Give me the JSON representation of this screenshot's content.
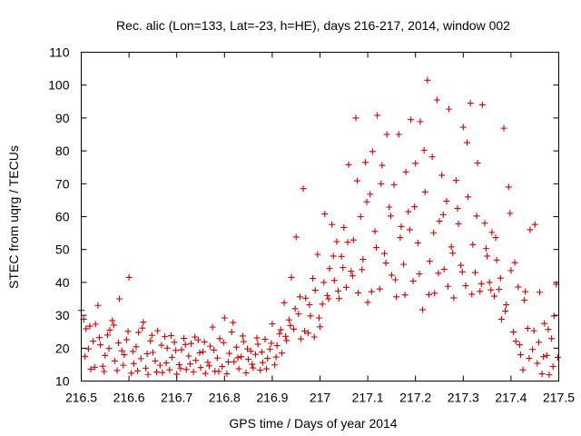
{
  "chart_data": {
    "type": "scatter",
    "title": "Rec. alic (Lon=133, Lat=-23, h=HE), days 216-217, 2014, window 002",
    "xlabel": "GPS time / Days of year 2014",
    "ylabel": "STEC from uqrg / TECUs",
    "xlim": [
      216.5,
      217.5
    ],
    "ylim": [
      10,
      110
    ],
    "x_ticks": [
      216.5,
      216.6,
      216.7,
      216.8,
      216.9,
      217,
      217.1,
      217.2,
      217.3,
      217.4,
      217.5
    ],
    "x_tick_labels": [
      "216.5",
      "216.6",
      "216.7",
      "216.8",
      "216.9",
      "217",
      "217.1",
      "217.2",
      "217.3",
      "217.4",
      "217.5"
    ],
    "y_ticks": [
      10,
      20,
      30,
      40,
      50,
      60,
      70,
      80,
      90,
      100,
      110
    ],
    "y_tick_labels": [
      "10",
      "20",
      "30",
      "40",
      "50",
      "60",
      "70",
      "80",
      "90",
      "100",
      "110"
    ],
    "grid": false,
    "marker": "plus",
    "color": "#cc0000",
    "points": [
      [
        216.5,
        31.5
      ],
      [
        216.505,
        28.8
      ],
      [
        216.51,
        25.9
      ],
      [
        216.515,
        19.8
      ],
      [
        216.52,
        13.6
      ],
      [
        216.525,
        22.1
      ],
      [
        216.53,
        27.3
      ],
      [
        216.535,
        33.0
      ],
      [
        216.54,
        21.0
      ],
      [
        216.545,
        14.5
      ],
      [
        216.55,
        17.8
      ],
      [
        216.555,
        24.0
      ],
      [
        216.56,
        25.5
      ],
      [
        216.565,
        28.4
      ],
      [
        216.57,
        16.1
      ],
      [
        216.575,
        13.2
      ],
      [
        216.58,
        35.0
      ],
      [
        216.585,
        19.2
      ],
      [
        216.59,
        18.0
      ],
      [
        216.595,
        22.6
      ],
      [
        216.6,
        41.5
      ],
      [
        216.605,
        12.4
      ],
      [
        216.61,
        15.3
      ],
      [
        216.615,
        20.4
      ],
      [
        216.62,
        24.8
      ],
      [
        216.625,
        16.8
      ],
      [
        216.63,
        27.9
      ],
      [
        216.635,
        13.9
      ],
      [
        216.64,
        12.0
      ],
      [
        216.645,
        22.2
      ],
      [
        216.65,
        18.7
      ],
      [
        216.655,
        16.1
      ],
      [
        216.66,
        25.3
      ],
      [
        216.665,
        14.8
      ],
      [
        216.67,
        12.6
      ],
      [
        216.675,
        23.5
      ],
      [
        216.68,
        20.0
      ],
      [
        216.685,
        13.4
      ],
      [
        216.69,
        17.2
      ],
      [
        216.695,
        21.8
      ],
      [
        216.7,
        12.1
      ],
      [
        216.705,
        15.0
      ],
      [
        216.71,
        19.5
      ],
      [
        216.715,
        23.0
      ],
      [
        216.72,
        13.5
      ],
      [
        216.725,
        17.6
      ],
      [
        216.73,
        21.4
      ],
      [
        216.735,
        12.8
      ],
      [
        216.74,
        16.3
      ],
      [
        216.745,
        22.5
      ],
      [
        216.75,
        14.1
      ],
      [
        216.755,
        18.9
      ],
      [
        216.76,
        12.3
      ],
      [
        216.765,
        15.7
      ],
      [
        216.77,
        20.6
      ],
      [
        216.775,
        26.4
      ],
      [
        216.78,
        13.0
      ],
      [
        216.785,
        17.0
      ],
      [
        216.79,
        22.9
      ],
      [
        216.795,
        14.4
      ],
      [
        216.8,
        29.2
      ],
      [
        216.805,
        12.2
      ],
      [
        216.81,
        18.4
      ],
      [
        216.815,
        24.9
      ],
      [
        216.82,
        15.9
      ],
      [
        216.825,
        20.3
      ],
      [
        216.83,
        13.7
      ],
      [
        216.835,
        17.4
      ],
      [
        216.84,
        22.0
      ],
      [
        216.845,
        12.5
      ],
      [
        216.85,
        16.6
      ],
      [
        216.855,
        19.1
      ],
      [
        216.86,
        14.0
      ],
      [
        216.865,
        18.1
      ],
      [
        216.87,
        21.2
      ],
      [
        216.875,
        13.3
      ],
      [
        216.88,
        15.6
      ],
      [
        216.885,
        22.7
      ],
      [
        216.89,
        16.9
      ],
      [
        216.895,
        19.7
      ],
      [
        216.9,
        27.4
      ],
      [
        216.905,
        14.9
      ],
      [
        216.91,
        20.8
      ],
      [
        216.915,
        24.4
      ],
      [
        216.92,
        18.5
      ],
      [
        216.925,
        33.8
      ],
      [
        216.93,
        22.3
      ],
      [
        216.935,
        28.6
      ],
      [
        216.94,
        41.5
      ],
      [
        216.945,
        25.8
      ],
      [
        216.95,
        53.8
      ],
      [
        216.955,
        30.4
      ],
      [
        216.96,
        22.8
      ],
      [
        216.965,
        68.5
      ],
      [
        216.97,
        35.2
      ],
      [
        216.975,
        24.6
      ],
      [
        216.98,
        29.8
      ],
      [
        216.985,
        41.2
      ],
      [
        216.99,
        37.6
      ],
      [
        216.995,
        48.5
      ],
      [
        217.0,
        26.5
      ],
      [
        217.005,
        33.4
      ],
      [
        217.01,
        60.8
      ],
      [
        217.015,
        36.0
      ],
      [
        217.02,
        44.2
      ],
      [
        217.025,
        57.6
      ],
      [
        217.03,
        40.6
      ],
      [
        217.035,
        52.4
      ],
      [
        217.04,
        35.1
      ],
      [
        217.045,
        47.9
      ],
      [
        217.05,
        56.7
      ],
      [
        217.055,
        38.5
      ],
      [
        217.06,
        75.8
      ],
      [
        217.065,
        43.4
      ],
      [
        217.07,
        52.9
      ],
      [
        217.075,
        90.0
      ],
      [
        217.08,
        36.8
      ],
      [
        217.085,
        60.0
      ],
      [
        217.09,
        47.0
      ],
      [
        217.095,
        76.5
      ],
      [
        217.1,
        33.9
      ],
      [
        217.105,
        66.8
      ],
      [
        217.11,
        79.8
      ],
      [
        217.115,
        55.5
      ],
      [
        217.12,
        90.8
      ],
      [
        217.125,
        38.0
      ],
      [
        217.13,
        75.6
      ],
      [
        217.135,
        48.8
      ],
      [
        217.14,
        85.0
      ],
      [
        217.145,
        62.9
      ],
      [
        217.15,
        42.2
      ],
      [
        217.155,
        69.7
      ],
      [
        217.16,
        35.6
      ],
      [
        217.165,
        85.0
      ],
      [
        217.17,
        57.0
      ],
      [
        217.175,
        45.5
      ],
      [
        217.18,
        73.6
      ],
      [
        217.185,
        61.5
      ],
      [
        217.19,
        89.5
      ],
      [
        217.195,
        40.4
      ],
      [
        217.2,
        76.2
      ],
      [
        217.205,
        52.0
      ],
      [
        217.21,
        88.9
      ],
      [
        217.215,
        31.7
      ],
      [
        217.22,
        67.5
      ],
      [
        217.225,
        101.5
      ],
      [
        217.23,
        46.4
      ],
      [
        217.235,
        78.2
      ],
      [
        217.24,
        36.7
      ],
      [
        217.245,
        95.5
      ],
      [
        217.25,
        58.6
      ],
      [
        217.255,
        72.6
      ],
      [
        217.26,
        44.0
      ],
      [
        217.265,
        64.7
      ],
      [
        217.27,
        92.7
      ],
      [
        217.275,
        50.8
      ],
      [
        217.28,
        35.3
      ],
      [
        217.285,
        71.0
      ],
      [
        217.29,
        57.8
      ],
      [
        217.295,
        45.2
      ],
      [
        217.3,
        87.2
      ],
      [
        217.305,
        39.0
      ],
      [
        217.31,
        66.0
      ],
      [
        217.315,
        94.5
      ],
      [
        217.32,
        51.5
      ],
      [
        217.325,
        43.0
      ],
      [
        217.33,
        76.3
      ],
      [
        217.335,
        37.3
      ],
      [
        217.34,
        94.0
      ],
      [
        217.345,
        58.0
      ],
      [
        217.35,
        48.0
      ],
      [
        217.355,
        40.0
      ],
      [
        217.36,
        55.2
      ],
      [
        217.365,
        35.8
      ],
      [
        217.37,
        46.8
      ],
      [
        217.375,
        37.9
      ],
      [
        217.38,
        28.8
      ],
      [
        217.385,
        86.9
      ],
      [
        217.39,
        33.2
      ],
      [
        217.395,
        69.0
      ],
      [
        217.4,
        43.6
      ],
      [
        217.405,
        24.9
      ],
      [
        217.41,
        22.1
      ],
      [
        217.415,
        38.6
      ],
      [
        217.42,
        18.0
      ],
      [
        217.425,
        13.4
      ],
      [
        217.43,
        37.2
      ],
      [
        217.435,
        26.0
      ],
      [
        217.44,
        56.0
      ],
      [
        217.445,
        19.6
      ],
      [
        217.45,
        57.6
      ],
      [
        217.455,
        15.4
      ],
      [
        217.46,
        37.0
      ],
      [
        217.465,
        12.2
      ],
      [
        217.47,
        27.5
      ],
      [
        217.475,
        17.8
      ],
      [
        217.48,
        11.9
      ],
      [
        217.485,
        22.9
      ],
      [
        217.49,
        29.8
      ],
      [
        217.495,
        39.4
      ],
      [
        216.508,
        17.5
      ],
      [
        216.518,
        26.7
      ],
      [
        216.528,
        14.2
      ],
      [
        216.538,
        23.2
      ],
      [
        216.548,
        12.9
      ],
      [
        216.558,
        19.9
      ],
      [
        216.568,
        27.0
      ],
      [
        216.578,
        21.6
      ],
      [
        216.588,
        14.8
      ],
      [
        216.598,
        25.1
      ],
      [
        216.608,
        19.0
      ],
      [
        216.618,
        13.1
      ],
      [
        216.628,
        26.1
      ],
      [
        216.638,
        18.3
      ],
      [
        216.648,
        23.9
      ],
      [
        216.658,
        12.7
      ],
      [
        216.668,
        20.9
      ],
      [
        216.678,
        15.5
      ],
      [
        216.688,
        23.8
      ],
      [
        216.698,
        19.3
      ],
      [
        216.708,
        13.8
      ],
      [
        216.718,
        21.1
      ],
      [
        216.728,
        15.2
      ],
      [
        216.738,
        23.4
      ],
      [
        216.748,
        18.6
      ],
      [
        216.758,
        21.9
      ],
      [
        216.768,
        14.6
      ],
      [
        216.778,
        19.4
      ],
      [
        216.788,
        12.9
      ],
      [
        216.798,
        21.7
      ],
      [
        216.808,
        15.8
      ],
      [
        216.818,
        27.8
      ],
      [
        216.828,
        17.1
      ],
      [
        216.838,
        23.7
      ],
      [
        216.848,
        19.8
      ],
      [
        216.858,
        15.1
      ],
      [
        216.868,
        23.1
      ],
      [
        216.878,
        18.8
      ],
      [
        216.888,
        13.7
      ],
      [
        216.898,
        21.5
      ],
      [
        216.908,
        17.3
      ],
      [
        216.918,
        25.6
      ],
      [
        216.928,
        23.6
      ],
      [
        216.938,
        26.9
      ],
      [
        216.948,
        32.0
      ],
      [
        216.958,
        35.6
      ],
      [
        216.968,
        25.2
      ],
      [
        216.978,
        33.2
      ],
      [
        216.988,
        23.4
      ],
      [
        216.998,
        29.2
      ],
      [
        217.008,
        40.0
      ],
      [
        217.018,
        35.0
      ],
      [
        217.028,
        48.0
      ],
      [
        217.038,
        37.4
      ],
      [
        217.048,
        44.5
      ],
      [
        217.058,
        52.2
      ],
      [
        217.068,
        42.0
      ],
      [
        217.078,
        70.9
      ],
      [
        217.088,
        43.9
      ],
      [
        217.098,
        64.5
      ],
      [
        217.108,
        37.2
      ],
      [
        217.118,
        50.6
      ],
      [
        217.128,
        70.0
      ],
      [
        217.138,
        45.9
      ],
      [
        217.148,
        60.2
      ],
      [
        217.158,
        40.8
      ],
      [
        217.168,
        53.6
      ],
      [
        217.178,
        36.2
      ],
      [
        217.188,
        56.0
      ],
      [
        217.198,
        63.0
      ],
      [
        217.208,
        42.6
      ],
      [
        217.218,
        80.2
      ],
      [
        217.228,
        36.3
      ],
      [
        217.238,
        55.1
      ],
      [
        217.248,
        42.8
      ],
      [
        217.258,
        60.6
      ],
      [
        217.268,
        38.8
      ],
      [
        217.278,
        48.9
      ],
      [
        217.288,
        62.5
      ],
      [
        217.298,
        43.2
      ],
      [
        217.308,
        82.5
      ],
      [
        217.318,
        36.4
      ],
      [
        217.328,
        60.2
      ],
      [
        217.338,
        39.6
      ],
      [
        217.348,
        50.3
      ],
      [
        217.358,
        37.7
      ],
      [
        217.368,
        53.6
      ],
      [
        217.378,
        41.3
      ],
      [
        217.388,
        31.3
      ],
      [
        217.398,
        61.0
      ],
      [
        217.408,
        46.0
      ],
      [
        217.418,
        21.0
      ],
      [
        217.428,
        34.6
      ],
      [
        217.438,
        16.9
      ],
      [
        217.448,
        25.3
      ],
      [
        217.458,
        21.8
      ],
      [
        217.468,
        17.4
      ],
      [
        217.478,
        25.7
      ],
      [
        217.488,
        14.4
      ],
      [
        217.498,
        17.2
      ]
    ]
  }
}
